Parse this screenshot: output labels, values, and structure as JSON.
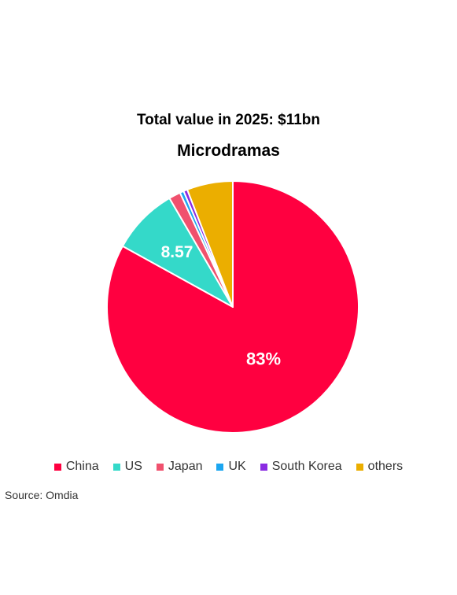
{
  "chart_data": {
    "type": "pie",
    "title": "Total value in 2025: $11bn",
    "subtitle": "Microdramas",
    "categories": [
      "China",
      "US",
      "Japan",
      "UK",
      "South Korea",
      "others"
    ],
    "values": [
      83,
      8.57,
      1.5,
      0.5,
      0.5,
      5.9
    ],
    "colors": [
      "#FF0040",
      "#34D9C9",
      "#F0516E",
      "#1CA6F0",
      "#8A2BE2",
      "#EBAE00"
    ],
    "data_labels": [
      {
        "category": "China",
        "text": "83%"
      },
      {
        "category": "US",
        "text": "8.57"
      }
    ],
    "legend_position": "bottom",
    "source": "Source: Omdia"
  }
}
